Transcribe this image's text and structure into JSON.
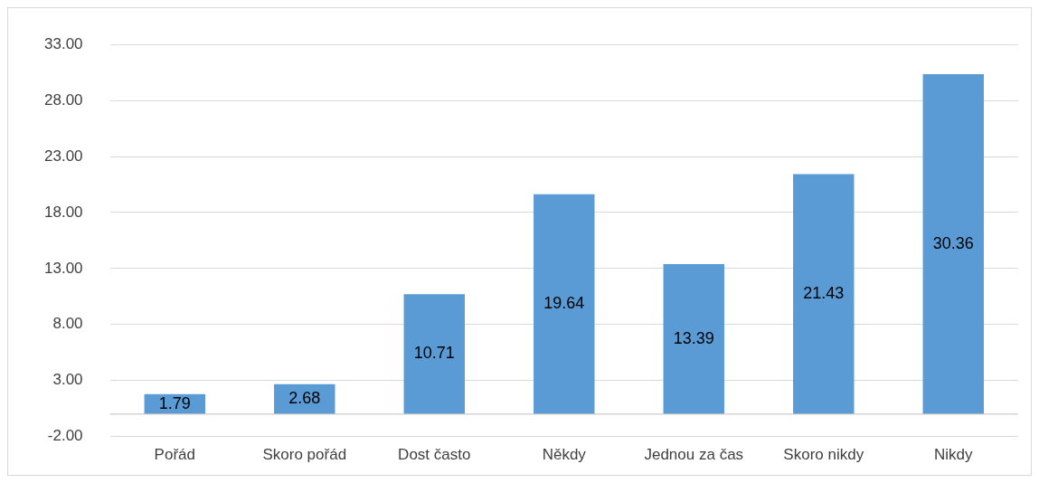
{
  "chart_data": {
    "type": "bar",
    "categories": [
      "Pořád",
      "Skoro pořád",
      "Dost často",
      "Někdy",
      "Jednou za čas",
      "Skoro nikdy",
      "Nikdy"
    ],
    "values": [
      1.79,
      2.68,
      10.71,
      19.64,
      13.39,
      21.43,
      30.36
    ],
    "color": "#5b9bd5",
    "ylim": [
      -2,
      33
    ],
    "yticks": [
      {
        "value": -2,
        "label": "-2.00"
      },
      {
        "value": 3,
        "label": "3.00"
      },
      {
        "value": 8,
        "label": "8.00"
      },
      {
        "value": 13,
        "label": "13.00"
      },
      {
        "value": 18,
        "label": "18.00"
      },
      {
        "value": 23,
        "label": "23.00"
      },
      {
        "value": 28,
        "label": "28.00"
      },
      {
        "value": 33,
        "label": "33.00"
      }
    ],
    "grid": "y",
    "data_labels": true
  }
}
